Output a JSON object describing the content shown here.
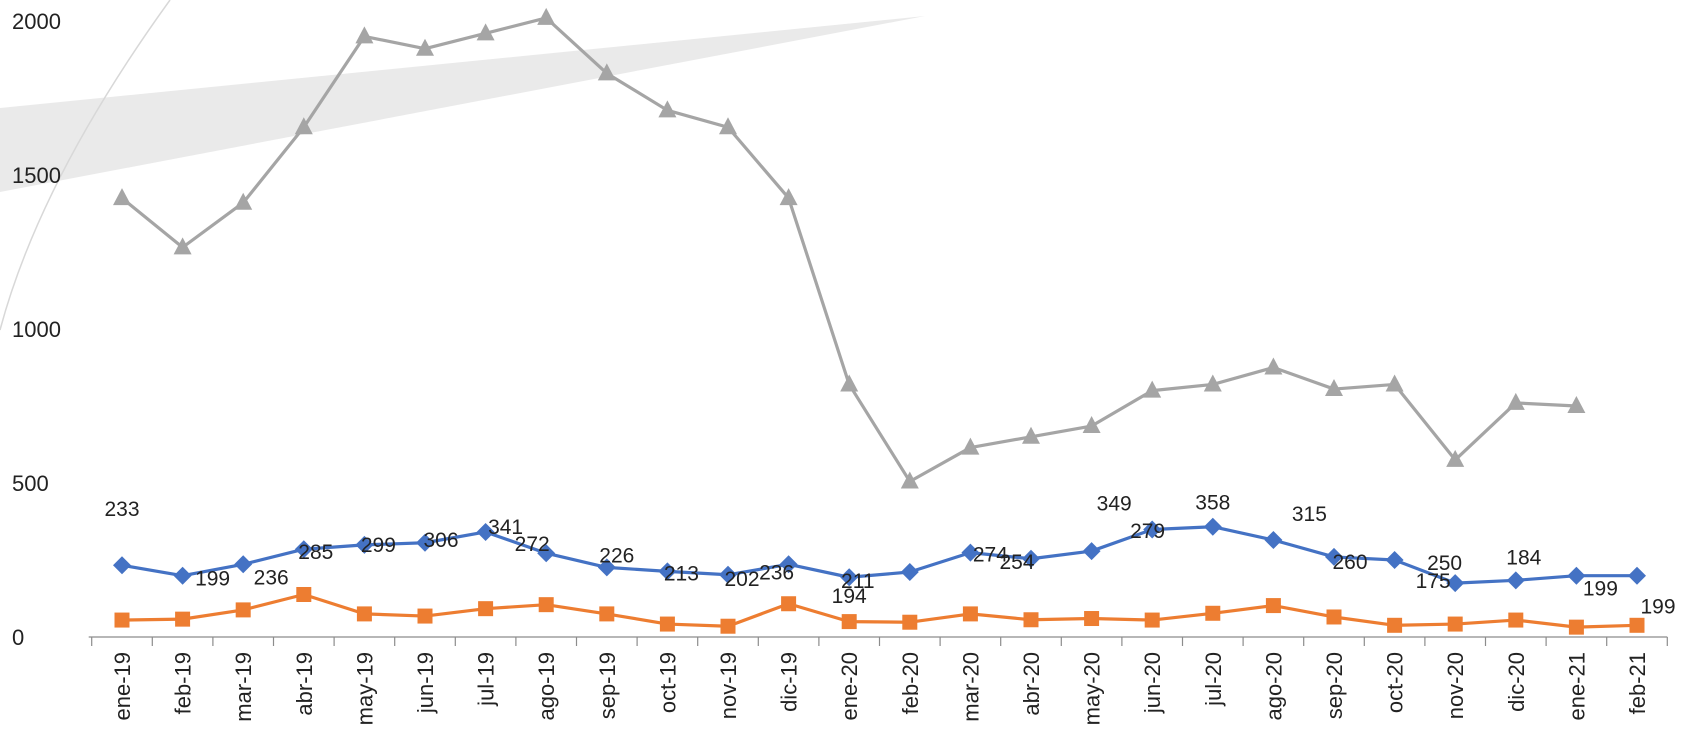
{
  "chart_data": {
    "type": "line",
    "categories": [
      "ene-19",
      "feb-19",
      "mar-19",
      "abr-19",
      "may-19",
      "jun-19",
      "jul-19",
      "ago-19",
      "sep-19",
      "oct-19",
      "nov-19",
      "dic-19",
      "ene-20",
      "feb-20",
      "mar-20",
      "abr-20",
      "may-20",
      "jun-20",
      "jul-20",
      "ago-20",
      "sep-20",
      "oct-20",
      "nov-20",
      "dic-20",
      "ene-21",
      "feb-21"
    ],
    "ylim": [
      0,
      2000
    ],
    "yticks": [
      0,
      500,
      1000,
      1500,
      2000
    ],
    "grid": false,
    "series": [
      {
        "color": "#4472C4",
        "marker": "diamond",
        "values": [
          233,
          199,
          236,
          285,
          299,
          306,
          341,
          272,
          226,
          213,
          202,
          236,
          194,
          211,
          274,
          254,
          279,
          349,
          358,
          315,
          260,
          250,
          175,
          184,
          199,
          199
        ],
        "labels": [
          "233",
          "199",
          "236",
          "285",
          "299",
          "306",
          "341",
          "272",
          "226",
          "213",
          "202",
          "236",
          "194",
          "211",
          "274",
          "254",
          "279",
          "349",
          "358",
          "315",
          "260",
          "250",
          "175",
          "184",
          "199",
          "199"
        ]
      },
      {
        "color": "#ED7D31",
        "marker": "square",
        "values": [
          55,
          58,
          88,
          138,
          75,
          68,
          92,
          105,
          75,
          42,
          35,
          108,
          50,
          48,
          75,
          56,
          60,
          55,
          77,
          102,
          65,
          38,
          42,
          55,
          32,
          38
        ]
      },
      {
        "color": "#A5A5A5",
        "marker": "triangle",
        "values": [
          1425,
          1265,
          1410,
          1655,
          1950,
          1910,
          1960,
          2010,
          1830,
          1710,
          1655,
          1425,
          820,
          505,
          615,
          650,
          685,
          800,
          820,
          875,
          805,
          820,
          575,
          760,
          750,
          null
        ]
      }
    ]
  }
}
